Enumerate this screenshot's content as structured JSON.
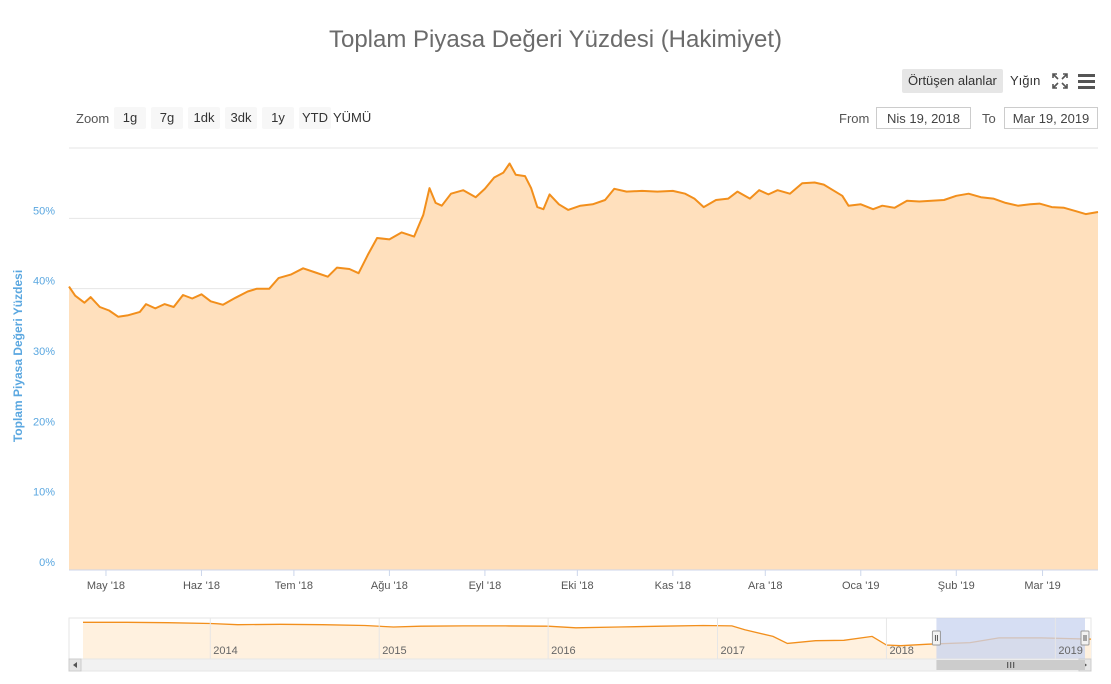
{
  "title": "Toplam Piyasa Değeri Yüzdesi (Hakimiyet)",
  "toolbar": {
    "overlap_label": "Örtüşen alanlar",
    "stack_label": "Yığın",
    "fullscreen_icon": "fullscreen-icon",
    "menu_icon": "hamburger-menu-icon"
  },
  "zoom": {
    "label": "Zoom",
    "buttons": [
      "1g",
      "7g",
      "1dk",
      "3dk",
      "1y",
      "YTD",
      "YÜMÜ"
    ]
  },
  "range": {
    "from_label": "From",
    "from_value": "Nis 19, 2018",
    "to_label": "To",
    "to_value": "Mar 19, 2019"
  },
  "colors": {
    "line": "#f28f1c",
    "fill": "#ffe0bd",
    "axis_title": "#5aa7e0",
    "tick": "#5aa7e0",
    "navigator_mask": "#c8d3ef"
  },
  "chart_data": {
    "type": "area",
    "ylabel": "Toplam Piyasa Değeri Yüzdesi",
    "ylim": [
      0,
      60
    ],
    "yticks": [
      0,
      10,
      20,
      30,
      40,
      50
    ],
    "ytick_labels": [
      "0%",
      "10%",
      "20%",
      "30%",
      "40%",
      "50%"
    ],
    "xlim": [
      "2018-04-19",
      "2019-03-19"
    ],
    "xtick_labels": [
      {
        "date": "2018-05-01",
        "label": "May '18"
      },
      {
        "date": "2018-06-01",
        "label": "Haz '18"
      },
      {
        "date": "2018-07-01",
        "label": "Tem '18"
      },
      {
        "date": "2018-08-01",
        "label": "Ağu '18"
      },
      {
        "date": "2018-09-01",
        "label": "Eyl '18"
      },
      {
        "date": "2018-10-01",
        "label": "Eki '18"
      },
      {
        "date": "2018-11-01",
        "label": "Kas '18"
      },
      {
        "date": "2018-12-01",
        "label": "Ara '18"
      },
      {
        "date": "2019-01-01",
        "label": "Oca '19"
      },
      {
        "date": "2019-02-01",
        "label": "Şub '19"
      },
      {
        "date": "2019-03-01",
        "label": "Mar '19"
      }
    ],
    "series": [
      {
        "points": [
          [
            "2018-04-19",
            40.3
          ],
          [
            "2018-04-21",
            39.0
          ],
          [
            "2018-04-24",
            38.0
          ],
          [
            "2018-04-26",
            38.8
          ],
          [
            "2018-04-29",
            37.4
          ],
          [
            "2018-05-02",
            36.9
          ],
          [
            "2018-05-05",
            36.0
          ],
          [
            "2018-05-08",
            36.2
          ],
          [
            "2018-05-12",
            36.7
          ],
          [
            "2018-05-14",
            37.8
          ],
          [
            "2018-05-17",
            37.2
          ],
          [
            "2018-05-20",
            37.8
          ],
          [
            "2018-05-23",
            37.4
          ],
          [
            "2018-05-26",
            39.1
          ],
          [
            "2018-05-29",
            38.6
          ],
          [
            "2018-06-01",
            39.2
          ],
          [
            "2018-06-04",
            38.2
          ],
          [
            "2018-06-08",
            37.7
          ],
          [
            "2018-06-12",
            38.7
          ],
          [
            "2018-06-16",
            39.6
          ],
          [
            "2018-06-19",
            40.0
          ],
          [
            "2018-06-23",
            40.0
          ],
          [
            "2018-06-26",
            41.5
          ],
          [
            "2018-06-30",
            42.0
          ],
          [
            "2018-07-04",
            42.9
          ],
          [
            "2018-07-08",
            42.3
          ],
          [
            "2018-07-12",
            41.7
          ],
          [
            "2018-07-15",
            43.0
          ],
          [
            "2018-07-19",
            42.8
          ],
          [
            "2018-07-22",
            42.2
          ],
          [
            "2018-07-25",
            44.8
          ],
          [
            "2018-07-28",
            47.2
          ],
          [
            "2018-08-01",
            47.0
          ],
          [
            "2018-08-05",
            48.0
          ],
          [
            "2018-08-09",
            47.4
          ],
          [
            "2018-08-12",
            50.5
          ],
          [
            "2018-08-14",
            54.3
          ],
          [
            "2018-08-16",
            52.2
          ],
          [
            "2018-08-18",
            51.8
          ],
          [
            "2018-08-21",
            53.5
          ],
          [
            "2018-08-25",
            54.0
          ],
          [
            "2018-08-29",
            53.0
          ],
          [
            "2018-09-01",
            54.2
          ],
          [
            "2018-09-04",
            55.8
          ],
          [
            "2018-09-07",
            56.5
          ],
          [
            "2018-09-09",
            57.8
          ],
          [
            "2018-09-11",
            56.2
          ],
          [
            "2018-09-14",
            56.0
          ],
          [
            "2018-09-16",
            54.3
          ],
          [
            "2018-09-18",
            51.6
          ],
          [
            "2018-09-20",
            51.3
          ],
          [
            "2018-09-22",
            53.4
          ],
          [
            "2018-09-25",
            52.0
          ],
          [
            "2018-09-28",
            51.2
          ],
          [
            "2018-10-02",
            51.8
          ],
          [
            "2018-10-06",
            52.0
          ],
          [
            "2018-10-10",
            52.6
          ],
          [
            "2018-10-13",
            54.2
          ],
          [
            "2018-10-17",
            53.8
          ],
          [
            "2018-10-22",
            53.9
          ],
          [
            "2018-10-27",
            53.8
          ],
          [
            "2018-11-01",
            53.9
          ],
          [
            "2018-11-05",
            53.5
          ],
          [
            "2018-11-08",
            52.8
          ],
          [
            "2018-11-11",
            51.6
          ],
          [
            "2018-11-15",
            52.6
          ],
          [
            "2018-11-19",
            52.8
          ],
          [
            "2018-11-22",
            53.8
          ],
          [
            "2018-11-26",
            52.8
          ],
          [
            "2018-11-29",
            54.0
          ],
          [
            "2018-12-02",
            53.4
          ],
          [
            "2018-12-05",
            54.0
          ],
          [
            "2018-12-09",
            53.5
          ],
          [
            "2018-12-13",
            55.0
          ],
          [
            "2018-12-17",
            55.1
          ],
          [
            "2018-12-20",
            54.8
          ],
          [
            "2018-12-23",
            54.0
          ],
          [
            "2018-12-26",
            53.2
          ],
          [
            "2018-12-28",
            51.8
          ],
          [
            "2019-01-01",
            52.0
          ],
          [
            "2019-01-05",
            51.3
          ],
          [
            "2019-01-08",
            51.8
          ],
          [
            "2019-01-12",
            51.5
          ],
          [
            "2019-01-16",
            52.5
          ],
          [
            "2019-01-20",
            52.4
          ],
          [
            "2019-01-24",
            52.5
          ],
          [
            "2019-01-28",
            52.6
          ],
          [
            "2019-02-01",
            53.2
          ],
          [
            "2019-02-05",
            53.5
          ],
          [
            "2019-02-09",
            53.0
          ],
          [
            "2019-02-13",
            52.8
          ],
          [
            "2019-02-17",
            52.2
          ],
          [
            "2019-02-21",
            51.8
          ],
          [
            "2019-02-25",
            52.0
          ],
          [
            "2019-02-28",
            52.1
          ],
          [
            "2019-03-04",
            51.6
          ],
          [
            "2019-03-08",
            51.5
          ],
          [
            "2019-03-12",
            51.0
          ],
          [
            "2019-03-15",
            50.6
          ],
          [
            "2019-03-19",
            50.9
          ]
        ]
      }
    ],
    "grid": true,
    "legend": "none",
    "navigator": {
      "xtick_labels": [
        "2014",
        "2015",
        "2016",
        "2017",
        "2018",
        "2019"
      ],
      "selection": [
        "2018-04-19",
        "2019-03-19"
      ],
      "points": [
        [
          "2013-04-01",
          94
        ],
        [
          "2013-07-01",
          94
        ],
        [
          "2013-10-01",
          93
        ],
        [
          "2014-01-01",
          91
        ],
        [
          "2014-03-01",
          88
        ],
        [
          "2014-06-01",
          89
        ],
        [
          "2014-09-01",
          88
        ],
        [
          "2014-12-01",
          86
        ],
        [
          "2015-02-01",
          82
        ],
        [
          "2015-04-01",
          84
        ],
        [
          "2015-07-01",
          85
        ],
        [
          "2015-10-01",
          85
        ],
        [
          "2016-01-01",
          84
        ],
        [
          "2016-03-01",
          80
        ],
        [
          "2016-06-01",
          82
        ],
        [
          "2016-09-01",
          84
        ],
        [
          "2016-12-01",
          86
        ],
        [
          "2017-02-01",
          85
        ],
        [
          "2017-03-01",
          75
        ],
        [
          "2017-05-01",
          58
        ],
        [
          "2017-06-01",
          40
        ],
        [
          "2017-08-01",
          47
        ],
        [
          "2017-10-01",
          48
        ],
        [
          "2017-12-01",
          58
        ],
        [
          "2018-01-01",
          36
        ],
        [
          "2018-02-01",
          34
        ],
        [
          "2018-04-01",
          38
        ],
        [
          "2018-07-01",
          42
        ],
        [
          "2018-09-01",
          54
        ],
        [
          "2018-12-01",
          54
        ],
        [
          "2019-03-19",
          51
        ]
      ]
    }
  }
}
